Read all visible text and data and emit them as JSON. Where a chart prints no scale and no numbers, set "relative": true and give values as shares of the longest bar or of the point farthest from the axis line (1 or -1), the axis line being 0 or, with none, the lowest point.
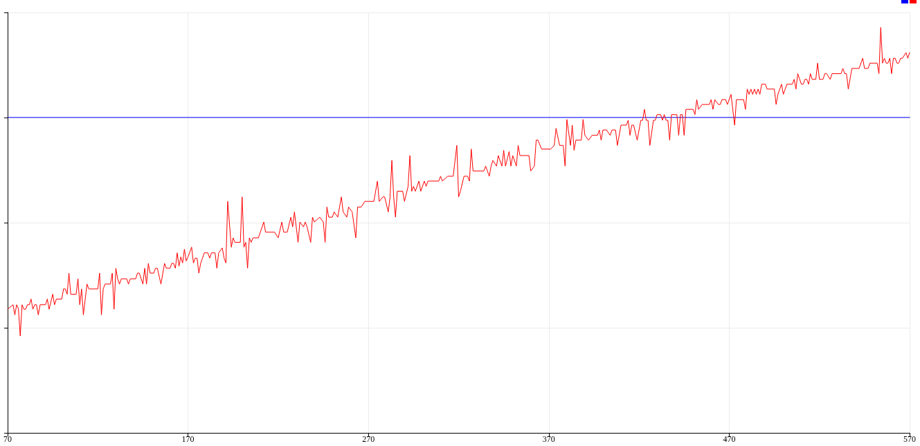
{
  "chart_data": {
    "type": "line",
    "relative": true,
    "grid": true,
    "xlim": [
      70,
      570
    ],
    "xticks": [
      70,
      170,
      270,
      370,
      470,
      570
    ],
    "series": [
      {
        "color": "#0000ff",
        "x": [
          70,
          570
        ],
        "values": [
          0.778,
          0.778
        ]
      },
      {
        "color": "#ff0000",
        "x": [
          70,
          73,
          74,
          75,
          76,
          77,
          78,
          79,
          80,
          81,
          82,
          83,
          84,
          85,
          86,
          87,
          88,
          91,
          92,
          93,
          95,
          96,
          97,
          100,
          101,
          102,
          103,
          104,
          105,
          108,
          109,
          110,
          111,
          112,
          114,
          115,
          120,
          121,
          122,
          123,
          124,
          127,
          128,
          129,
          130,
          131,
          132,
          133,
          136,
          137,
          138,
          141,
          142,
          143,
          145,
          146,
          147,
          148,
          149,
          151,
          152,
          153,
          155,
          157,
          158,
          160,
          161,
          162,
          163,
          164,
          165,
          166,
          167,
          168,
          169,
          170,
          172,
          173,
          174,
          175,
          176,
          177,
          179,
          181,
          182,
          183,
          185,
          186,
          187,
          189,
          190,
          191,
          192,
          194,
          195,
          196,
          199,
          200,
          201,
          202,
          203,
          204,
          205,
          206,
          209,
          212,
          213,
          218,
          220,
          222,
          223,
          225,
          227,
          228,
          229,
          231,
          232,
          234,
          235,
          236,
          238,
          239,
          240,
          243,
          245,
          246,
          247,
          248,
          250,
          251,
          253,
          254,
          255,
          256,
          258,
          259,
          261,
          263,
          264,
          266,
          268,
          270,
          273,
          275,
          276,
          278,
          279,
          281,
          282,
          283,
          284,
          285,
          286,
          289,
          290,
          292,
          293,
          294,
          295,
          296,
          298,
          299,
          301,
          302,
          303,
          309,
          310,
          311,
          314,
          317,
          319,
          320,
          321,
          323,
          325,
          326,
          327,
          328,
          334,
          335,
          337,
          338,
          339,
          341,
          342,
          344,
          345,
          346,
          348,
          349,
          350,
          352,
          353,
          354,
          359,
          360,
          362,
          363,
          364,
          366,
          371,
          373,
          374,
          376,
          378,
          379,
          380,
          382,
          383,
          384,
          385,
          388,
          389,
          390,
          392,
          394,
          397,
          398,
          399,
          400,
          402,
          404,
          405,
          407,
          408,
          410,
          411,
          413,
          414,
          415,
          416,
          417,
          419,
          421,
          422,
          423,
          424,
          425,
          426,
          428,
          429,
          430,
          432,
          433,
          434,
          435,
          436,
          437,
          438,
          441,
          442,
          443,
          444,
          445,
          446,
          450,
          451,
          452,
          453,
          455,
          459,
          460,
          461,
          462,
          464,
          465,
          466,
          468,
          469,
          471,
          473,
          474,
          478,
          479,
          480,
          481,
          482,
          483,
          484,
          485,
          486,
          487,
          488,
          490,
          491,
          495,
          496,
          497,
          499,
          500,
          502,
          505,
          506,
          507,
          508,
          510,
          511,
          512,
          513,
          514,
          515,
          516,
          518,
          519,
          520,
          522,
          523,
          524,
          526,
          527,
          532,
          533,
          534,
          535,
          536,
          538,
          542,
          544,
          545,
          547,
          548,
          552,
          553,
          554,
          555,
          556,
          557,
          558,
          559,
          560,
          561,
          562,
          563,
          564,
          565,
          566,
          568,
          569,
          570
        ],
        "values": [
          0.305,
          0.316,
          0.291,
          0.316,
          0.306,
          0.239,
          0.316,
          0.305,
          0.305,
          0.316,
          0.316,
          0.33,
          0.305,
          0.316,
          0.316,
          0.291,
          0.316,
          0.316,
          0.33,
          0.305,
          0.342,
          0.316,
          0.33,
          0.33,
          0.355,
          0.355,
          0.342,
          0.394,
          0.342,
          0.342,
          0.38,
          0.316,
          0.355,
          0.291,
          0.367,
          0.355,
          0.355,
          0.394,
          0.291,
          0.355,
          0.367,
          0.367,
          0.394,
          0.305,
          0.406,
          0.38,
          0.367,
          0.38,
          0.38,
          0.367,
          0.38,
          0.38,
          0.394,
          0.394,
          0.367,
          0.406,
          0.367,
          0.418,
          0.394,
          0.394,
          0.406,
          0.406,
          0.367,
          0.418,
          0.406,
          0.406,
          0.418,
          0.418,
          0.406,
          0.444,
          0.411,
          0.434,
          0.419,
          0.453,
          0.424,
          0.434,
          0.458,
          0.419,
          0.431,
          0.431,
          0.394,
          0.418,
          0.444,
          0.444,
          0.431,
          0.444,
          0.444,
          0.406,
          0.444,
          0.456,
          0.431,
          0.419,
          0.571,
          0.458,
          0.481,
          0.47,
          0.47,
          0.582,
          0.458,
          0.47,
          0.406,
          0.481,
          0.47,
          0.481,
          0.481,
          0.52,
          0.495,
          0.495,
          0.481,
          0.52,
          0.495,
          0.495,
          0.532,
          0.508,
          0.545,
          0.47,
          0.52,
          0.508,
          0.52,
          0.508,
          0.47,
          0.532,
          0.52,
          0.532,
          0.52,
          0.47,
          0.557,
          0.532,
          0.532,
          0.545,
          0.532,
          0.557,
          0.582,
          0.545,
          0.532,
          0.557,
          0.545,
          0.481,
          0.557,
          0.557,
          0.571,
          0.571,
          0.571,
          0.621,
          0.571,
          0.582,
          0.582,
          0.545,
          0.582,
          0.672,
          0.582,
          0.532,
          0.596,
          0.596,
          0.571,
          0.608,
          0.684,
          0.596,
          0.608,
          0.596,
          0.621,
          0.596,
          0.621,
          0.608,
          0.621,
          0.621,
          0.633,
          0.621,
          0.633,
          0.633,
          0.709,
          0.582,
          0.596,
          0.633,
          0.633,
          0.621,
          0.7,
          0.646,
          0.646,
          0.658,
          0.633,
          0.658,
          0.672,
          0.658,
          0.684,
          0.658,
          0.697,
          0.658,
          0.694,
          0.658,
          0.684,
          0.658,
          0.709,
          0.684,
          0.684,
          0.646,
          0.658,
          0.722,
          0.722,
          0.7,
          0.7,
          0.709,
          0.751,
          0.709,
          0.709,
          0.658,
          0.773,
          0.709,
          0.759,
          0.697,
          0.722,
          0.722,
          0.773,
          0.734,
          0.722,
          0.734,
          0.734,
          0.747,
          0.722,
          0.747,
          0.747,
          0.734,
          0.747,
          0.747,
          0.709,
          0.759,
          0.759,
          0.759,
          0.771,
          0.734,
          0.759,
          0.759,
          0.722,
          0.771,
          0.771,
          0.798,
          0.771,
          0.771,
          0.709,
          0.771,
          0.771,
          0.785,
          0.785,
          0.771,
          0.785,
          0.771,
          0.771,
          0.722,
          0.785,
          0.785,
          0.734,
          0.785,
          0.785,
          0.734,
          0.798,
          0.798,
          0.785,
          0.822,
          0.798,
          0.81,
          0.81,
          0.822,
          0.798,
          0.822,
          0.81,
          0.81,
          0.822,
          0.822,
          0.81,
          0.835,
          0.759,
          0.822,
          0.822,
          0.798,
          0.848,
          0.835,
          0.848,
          0.835,
          0.848,
          0.835,
          0.848,
          0.835,
          0.86,
          0.86,
          0.848,
          0.848,
          0.81,
          0.835,
          0.86,
          0.835,
          0.86,
          0.86,
          0.872,
          0.848,
          0.886,
          0.86,
          0.86,
          0.872,
          0.872,
          0.86,
          0.886,
          0.872,
          0.872,
          0.912,
          0.872,
          0.872,
          0.886,
          0.886,
          0.872,
          0.886,
          0.886,
          0.899,
          0.886,
          0.886,
          0.848,
          0.899,
          0.899,
          0.924,
          0.899,
          0.899,
          0.912,
          0.912,
          0.886,
          1,
          0.912,
          0.924,
          0.912,
          0.912,
          0.924,
          0.886,
          0.924,
          0.924,
          0.912,
          0.912,
          0.924,
          0.924,
          0.938,
          0.924,
          0.938
        ]
      }
    ]
  }
}
